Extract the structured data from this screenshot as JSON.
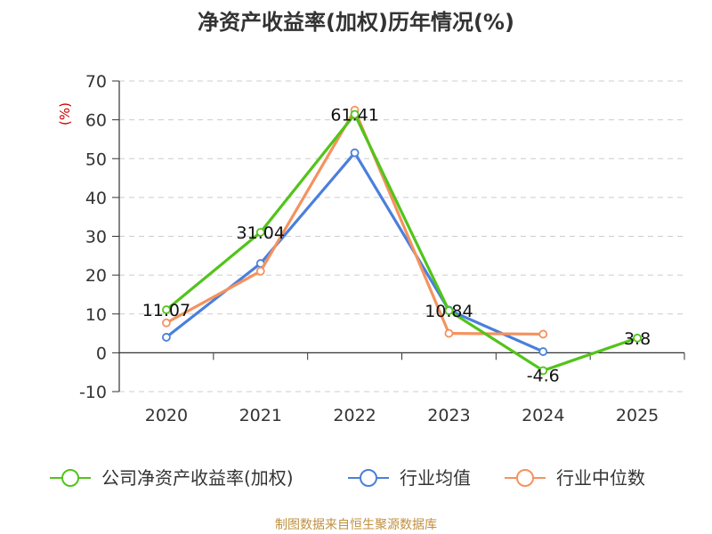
{
  "chart_data": {
    "type": "line",
    "title": "净资产收益率(加权)历年情况(%)",
    "ylabel": "(%)",
    "xlabel": "",
    "categories": [
      "2020",
      "2021",
      "2022",
      "2023",
      "2024",
      "2025"
    ],
    "ylim": [
      -10,
      70
    ],
    "yticks": [
      "70",
      "60",
      "50",
      "40",
      "30",
      "20",
      "10",
      "0",
      "-10"
    ],
    "grid": true,
    "legend_position": "bottom",
    "series": [
      {
        "name": "公司净资产收益率(加权)",
        "color": "#52c41a",
        "values": [
          11.07,
          31.04,
          61.41,
          10.84,
          -4.6,
          3.8
        ],
        "labels": [
          "11.07",
          "31.04",
          "61.41",
          "10.84",
          "-4.6",
          "3.8"
        ]
      },
      {
        "name": "行业均值",
        "color": "#4a7fdc",
        "values": [
          4.0,
          23.0,
          51.5,
          11.0,
          0.3,
          null
        ]
      },
      {
        "name": "行业中位数",
        "color": "#f5925e",
        "values": [
          7.7,
          21.0,
          62.5,
          5.0,
          4.8,
          null
        ]
      }
    ],
    "source": "制图数据来自恒生聚源数据库"
  },
  "colors": {
    "axis": "#333333",
    "grid": "#cccccc",
    "unit_label": "#cc0000",
    "source": "#c09040"
  }
}
